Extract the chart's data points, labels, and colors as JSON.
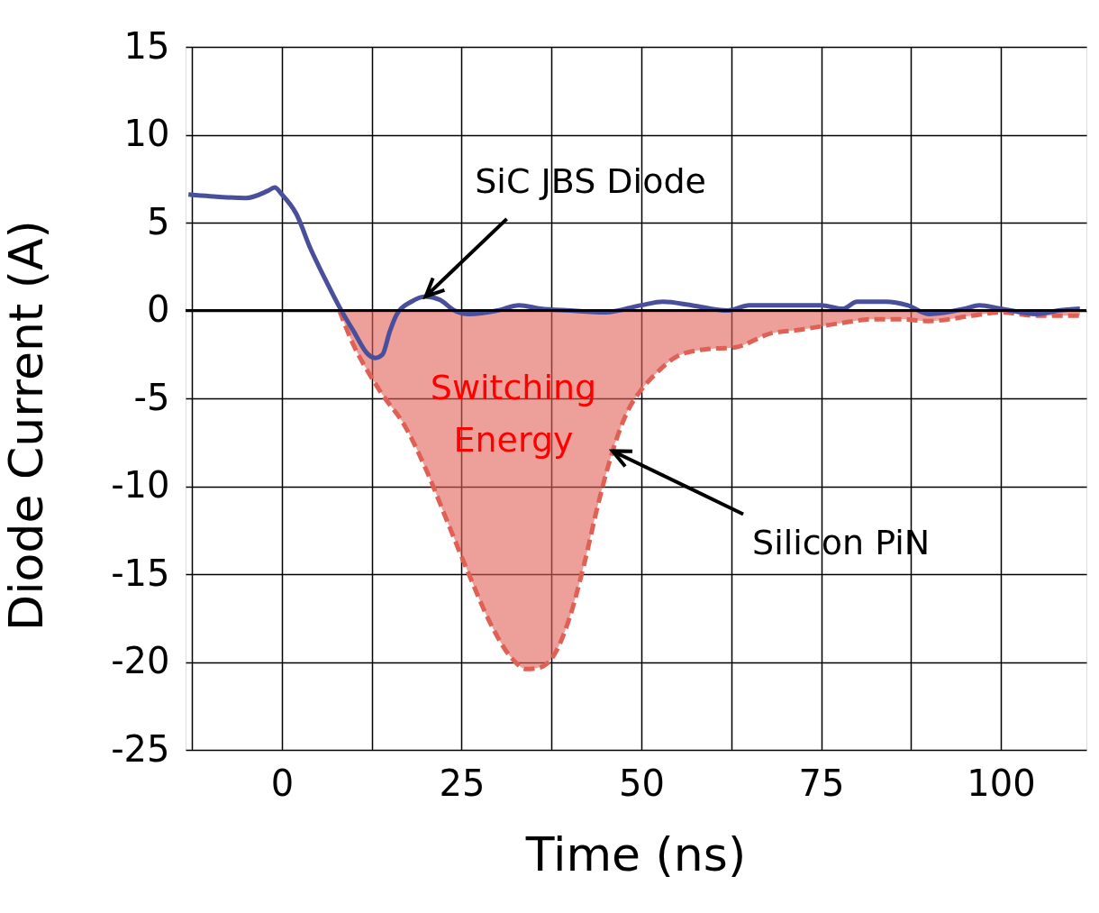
{
  "chart_data": {
    "type": "line",
    "xlabel": "Time (ns)",
    "ylabel": "Diode Current (A)",
    "xlim": [
      -13.4,
      111.9
    ],
    "xticks": [
      {
        "value": -12.5,
        "label": null
      },
      0,
      {
        "value": 12.5,
        "label": null
      },
      25,
      {
        "value": 37.5,
        "label": null
      },
      50,
      {
        "value": 62.5,
        "label": null
      },
      75,
      {
        "value": 87.5,
        "label": null
      },
      100
    ],
    "ylim": [
      -25,
      15
    ],
    "yticks": [
      -25,
      -20,
      -15,
      -10,
      -5,
      0,
      5,
      10,
      15
    ],
    "grid": true,
    "series": [
      {
        "type": "area",
        "color": "#e06055",
        "line_style": "dashed",
        "x": [
          8,
          10,
          12,
          14,
          17,
          20,
          23,
          26,
          29,
          32,
          34,
          36,
          38,
          40,
          42,
          44,
          46,
          48,
          50,
          52,
          55,
          59,
          63,
          68,
          72,
          78,
          82,
          86,
          90,
          96,
          100,
          105,
          111
        ],
        "values": [
          0,
          -2,
          -3.5,
          -4.8,
          -6.5,
          -9,
          -12,
          -15,
          -17.8,
          -19.8,
          -20.4,
          -20.3,
          -19.5,
          -17.5,
          -14.5,
          -11,
          -8,
          -5.8,
          -4.5,
          -3.6,
          -2.6,
          -2.2,
          -2.1,
          -1.3,
          -1.1,
          -0.7,
          -0.5,
          -0.5,
          -0.6,
          -0.3,
          -0.1,
          -0.3,
          -0.3
        ]
      },
      {
        "color": "#4a4f9c",
        "line_style": "solid",
        "x": [
          -13,
          -10,
          -5,
          -2,
          -1,
          0,
          2,
          4,
          6,
          8,
          10,
          12,
          13,
          14,
          15,
          16,
          18,
          20,
          22,
          24,
          26,
          30,
          33,
          36,
          40,
          45,
          50,
          53,
          57,
          62,
          65,
          70,
          75,
          78,
          80,
          84,
          87,
          90,
          95,
          97,
          100,
          105,
          108,
          111
        ],
        "values": [
          6.6,
          6.5,
          6.4,
          6.8,
          7.0,
          6.6,
          5.5,
          3.5,
          1.8,
          0.2,
          -1.2,
          -2.5,
          -2.7,
          -2.5,
          -1.2,
          -0.2,
          0.5,
          0.8,
          0.6,
          0,
          -0.2,
          0,
          0.3,
          0.1,
          0,
          -0.1,
          0.3,
          0.5,
          0.3,
          0,
          0.3,
          0.3,
          0.3,
          0.1,
          0.5,
          0.5,
          0.3,
          -0.2,
          0.1,
          0.3,
          0.1,
          -0.2,
          0,
          0.1
        ]
      }
    ],
    "ref_lines": [
      {
        "axis": "y",
        "value": 0,
        "color": "#000000"
      }
    ],
    "annotations": [
      {
        "text": "SiC JBS Diode",
        "x": 20,
        "y": 0.8
      },
      "Switching Energy",
      {
        "text": "Silicon PiN",
        "x": 46,
        "y": -8
      }
    ]
  }
}
